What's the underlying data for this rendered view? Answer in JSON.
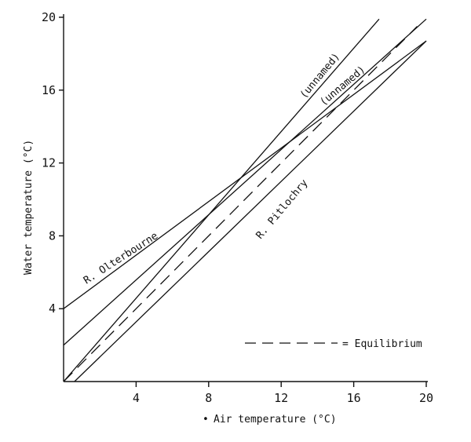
{
  "chart_data": {
    "type": "line",
    "xlabel": "Air temperature (°C)",
    "xlabel_marker": "•",
    "ylabel": "Water temperature (°C)",
    "xlim": [
      0,
      20
    ],
    "ylim": [
      0,
      20
    ],
    "xticks": [
      4,
      8,
      12,
      16,
      20
    ],
    "yticks": [
      4,
      8,
      12,
      16,
      20
    ],
    "grid": false,
    "series": [
      {
        "name": "R. Olterbourne",
        "style": "solid",
        "x": [
          0,
          20
        ],
        "y": [
          4,
          18.7
        ]
      },
      {
        "name": "(unnamed)",
        "style": "solid",
        "x": [
          0,
          17.4
        ],
        "y": [
          0,
          19.9
        ]
      },
      {
        "name": "(unnamed)",
        "style": "solid",
        "x": [
          0,
          20
        ],
        "y": [
          2,
          19.9
        ]
      },
      {
        "name": "R. Pitlochry",
        "style": "solid",
        "x": [
          0.6,
          20
        ],
        "y": [
          0,
          18.7
        ]
      },
      {
        "name": "Equilibrium",
        "style": "dashed",
        "x": [
          0,
          19.5
        ],
        "y": [
          0,
          19.5
        ]
      }
    ],
    "legend": {
      "text": "= Equilibrium",
      "placement": "bottom-right"
    },
    "colors": {
      "ink": "#111111",
      "background": "#ffffff"
    }
  }
}
